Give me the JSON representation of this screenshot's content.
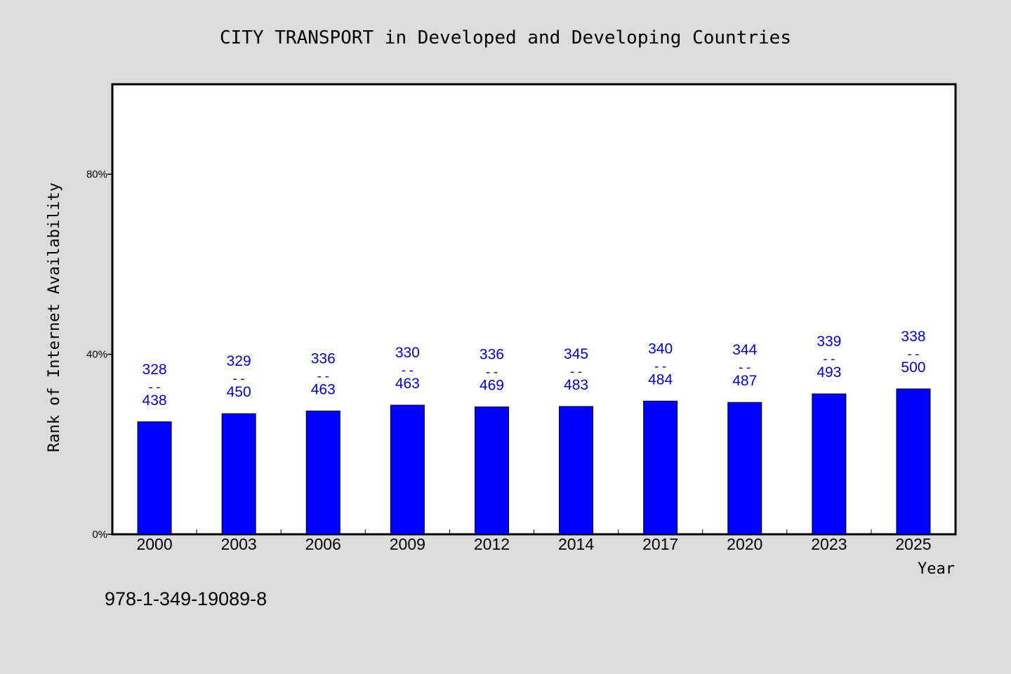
{
  "chart_data": {
    "type": "bar",
    "title": "CITY TRANSPORT in Developed and Developing Countries",
    "xlabel": "Year",
    "ylabel": "Rank of Internet Availability",
    "categories": [
      "2000",
      "2003",
      "2006",
      "2009",
      "2012",
      "2014",
      "2017",
      "2020",
      "2023",
      "2025"
    ],
    "series": [
      {
        "values": [
          25,
          26.8,
          27.4,
          28.7,
          28.3,
          28.4,
          29.6,
          29.3,
          31.2,
          32.3
        ]
      }
    ],
    "data_labels": [
      {
        "top": "328",
        "sep": "--",
        "bottom": "438"
      },
      {
        "top": "329",
        "sep": "--",
        "bottom": "450"
      },
      {
        "top": "336",
        "sep": "--",
        "bottom": "463"
      },
      {
        "top": "330",
        "sep": "--",
        "bottom": "463"
      },
      {
        "top": "336",
        "sep": "--",
        "bottom": "469"
      },
      {
        "top": "345",
        "sep": "--",
        "bottom": "483"
      },
      {
        "top": "340",
        "sep": "--",
        "bottom": "484"
      },
      {
        "top": "344",
        "sep": "--",
        "bottom": "487"
      },
      {
        "top": "339",
        "sep": "--",
        "bottom": "493"
      },
      {
        "top": "338",
        "sep": "--",
        "bottom": "500"
      }
    ],
    "yticks": [
      {
        "value": 0,
        "label": "0%"
      },
      {
        "value": 40,
        "label": "40%"
      },
      {
        "value": 80,
        "label": "80%"
      }
    ],
    "ylim": [
      0,
      100
    ],
    "grid": false,
    "legend": "none",
    "bar_color": "#0000ff",
    "label_color": "#0000cc"
  },
  "footnote": "978-1-349-19089-8",
  "colors": {
    "background": "#dcdcdc",
    "plot_background": "#ffffff",
    "axis": "#000000"
  }
}
